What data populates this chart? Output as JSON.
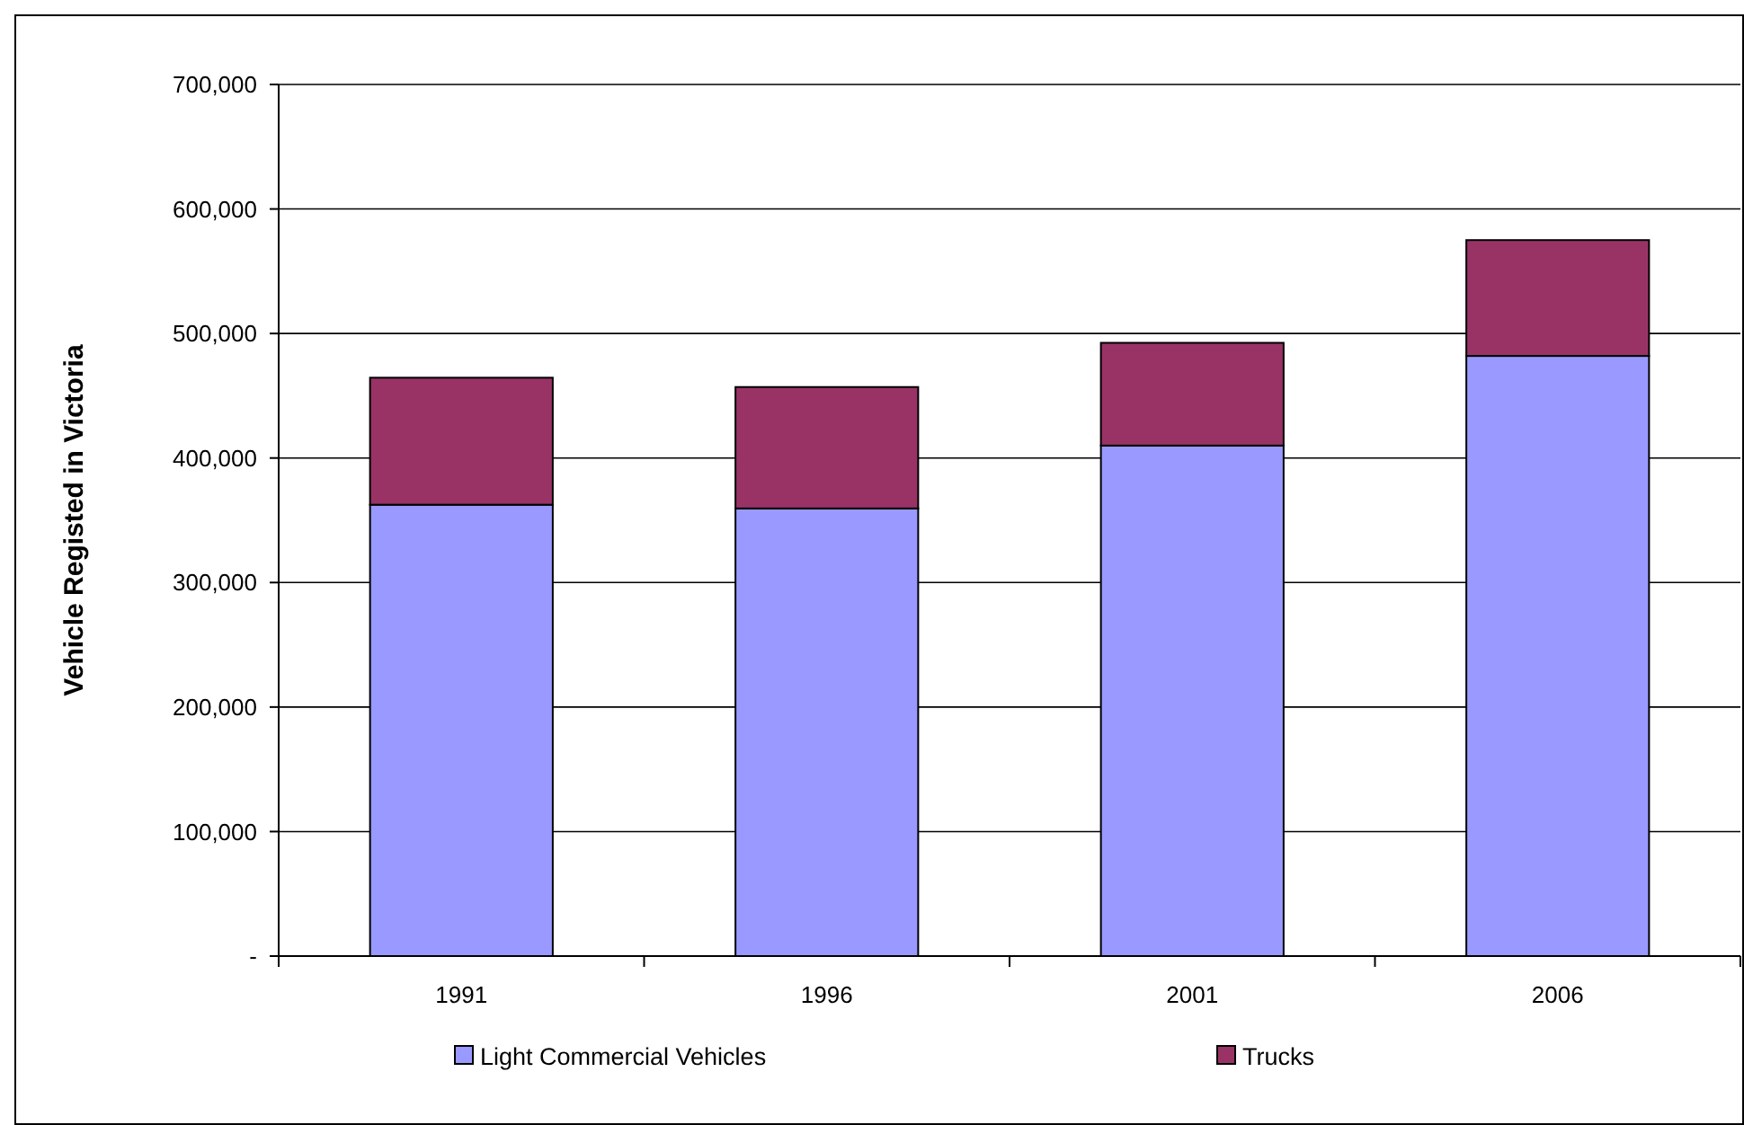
{
  "chart_data": {
    "type": "bar",
    "stacked": true,
    "ylabel": "Vehicle Registed in Victoria",
    "categories": [
      "1991",
      "1996",
      "2001",
      "2006"
    ],
    "series": [
      {
        "name": "Light Commercial Vehicles",
        "color": "#9999ff",
        "values": [
          362500,
          359500,
          410000,
          482000
        ]
      },
      {
        "name": "Trucks",
        "color": "#993366",
        "values": [
          102000,
          97500,
          82500,
          93000
        ]
      }
    ],
    "ylim": [
      0,
      700000
    ],
    "yticks": [
      {
        "value": 0,
        "label": "-"
      },
      {
        "value": 100000,
        "label": "100,000"
      },
      {
        "value": 200000,
        "label": "200,000"
      },
      {
        "value": 300000,
        "label": "300,000"
      },
      {
        "value": 400000,
        "label": "400,000"
      },
      {
        "value": 500000,
        "label": "500,000"
      },
      {
        "value": 600000,
        "label": "600,000"
      },
      {
        "value": 700000,
        "label": "700,000"
      }
    ],
    "grid": "y",
    "legend": "bottom"
  }
}
